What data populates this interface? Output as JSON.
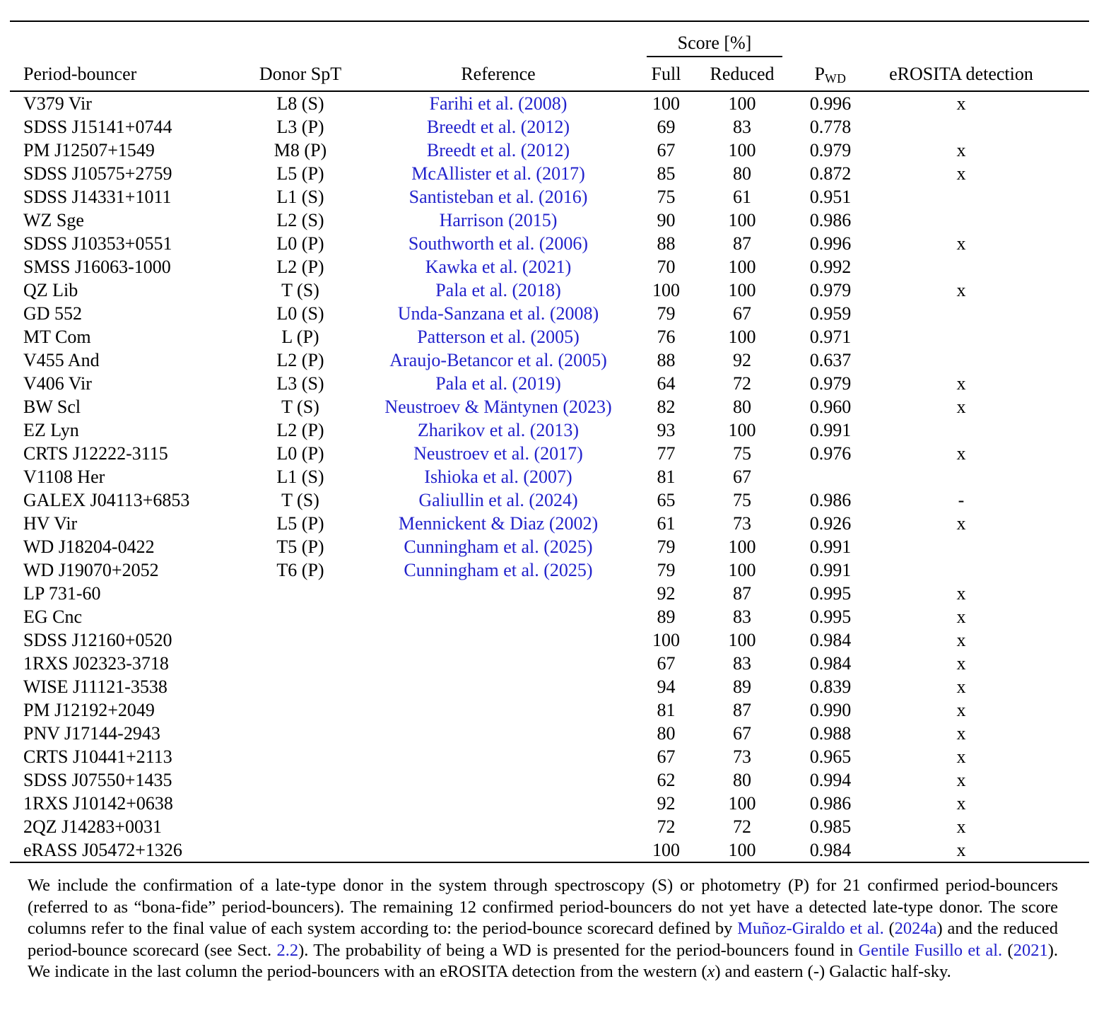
{
  "colors": {
    "link_blue": "#2222cc",
    "text": "#000000",
    "background": "#ffffff"
  },
  "table": {
    "score_group_label": "Score [%]",
    "headers": {
      "period_bouncer": "Period-bouncer",
      "donor_spt": "Donor SpT",
      "reference": "Reference",
      "full": "Full",
      "reduced": "Reduced",
      "pwd_base": "P",
      "pwd_sub": "WD",
      "erosita": "eROSITA detection"
    },
    "rows": [
      {
        "name": "V379 Vir",
        "donor": "L8 (S)",
        "reference": "Farihi et al. (2008)",
        "full": "100",
        "reduced": "100",
        "pwd": "0.996",
        "erosita": "x"
      },
      {
        "name": "SDSS J15141+0744",
        "donor": "L3 (P)",
        "reference": "Breedt et al. (2012)",
        "full": "69",
        "reduced": "83",
        "pwd": "0.778",
        "erosita": ""
      },
      {
        "name": "PM J12507+1549",
        "donor": "M8 (P)",
        "reference": "Breedt et al. (2012)",
        "full": "67",
        "reduced": "100",
        "pwd": "0.979",
        "erosita": "x"
      },
      {
        "name": "SDSS J10575+2759",
        "donor": "L5 (P)",
        "reference": "McAllister et al. (2017)",
        "full": "85",
        "reduced": "80",
        "pwd": "0.872",
        "erosita": "x"
      },
      {
        "name": "SDSS J14331+1011",
        "donor": "L1 (S)",
        "reference": "Santisteban et al. (2016)",
        "full": "75",
        "reduced": "61",
        "pwd": "0.951",
        "erosita": ""
      },
      {
        "name": "WZ Sge",
        "donor": "L2 (S)",
        "reference": "Harrison (2015)",
        "full": "90",
        "reduced": "100",
        "pwd": "0.986",
        "erosita": ""
      },
      {
        "name": "SDSS J10353+0551",
        "donor": "L0 (P)",
        "reference": "Southworth et al. (2006)",
        "full": "88",
        "reduced": "87",
        "pwd": "0.996",
        "erosita": "x"
      },
      {
        "name": "SMSS J16063-1000",
        "donor": "L2 (P)",
        "reference": "Kawka et al. (2021)",
        "full": "70",
        "reduced": "100",
        "pwd": "0.992",
        "erosita": ""
      },
      {
        "name": "QZ Lib",
        "donor": "T (S)",
        "reference": "Pala et al. (2018)",
        "full": "100",
        "reduced": "100",
        "pwd": "0.979",
        "erosita": "x"
      },
      {
        "name": "GD 552",
        "donor": "L0 (S)",
        "reference": "Unda-Sanzana et al. (2008)",
        "full": "79",
        "reduced": "67",
        "pwd": "0.959",
        "erosita": ""
      },
      {
        "name": "MT Com",
        "donor": "L (P)",
        "reference": "Patterson et al. (2005)",
        "full": "76",
        "reduced": "100",
        "pwd": "0.971",
        "erosita": ""
      },
      {
        "name": "V455 And",
        "donor": "L2 (P)",
        "reference": "Araujo-Betancor et al. (2005)",
        "full": "88",
        "reduced": "92",
        "pwd": "0.637",
        "erosita": ""
      },
      {
        "name": "V406 Vir",
        "donor": "L3 (S)",
        "reference": "Pala et al. (2019)",
        "full": "64",
        "reduced": "72",
        "pwd": "0.979",
        "erosita": "x"
      },
      {
        "name": "BW Scl",
        "donor": "T (S)",
        "reference": "Neustroev & Mäntynen (2023)",
        "full": "82",
        "reduced": "80",
        "pwd": "0.960",
        "erosita": "x"
      },
      {
        "name": "EZ Lyn",
        "donor": "L2 (P)",
        "reference": "Zharikov et al. (2013)",
        "full": "93",
        "reduced": "100",
        "pwd": "0.991",
        "erosita": ""
      },
      {
        "name": "CRTS J12222-3115",
        "donor": "L0 (P)",
        "reference": "Neustroev et al. (2017)",
        "full": "77",
        "reduced": "75",
        "pwd": "0.976",
        "erosita": "x"
      },
      {
        "name": "V1108 Her",
        "donor": "L1 (S)",
        "reference": "Ishioka et al. (2007)",
        "full": "81",
        "reduced": "67",
        "pwd": "",
        "erosita": ""
      },
      {
        "name": "GALEX J04113+6853",
        "donor": "T (S)",
        "reference": "Galiullin et al. (2024)",
        "full": "65",
        "reduced": "75",
        "pwd": "0.986",
        "erosita": "-"
      },
      {
        "name": "HV Vir",
        "donor": "L5 (P)",
        "reference": "Mennickent & Diaz (2002)",
        "full": "61",
        "reduced": "73",
        "pwd": "0.926",
        "erosita": "x"
      },
      {
        "name": "WD J18204-0422",
        "donor": "T5 (P)",
        "reference": "Cunningham et al. (2025)",
        "full": "79",
        "reduced": "100",
        "pwd": "0.991",
        "erosita": ""
      },
      {
        "name": "WD J19070+2052",
        "donor": "T6 (P)",
        "reference": "Cunningham et al. (2025)",
        "full": "79",
        "reduced": "100",
        "pwd": "0.991",
        "erosita": ""
      },
      {
        "name": "LP 731-60",
        "donor": "",
        "reference": "",
        "full": "92",
        "reduced": "87",
        "pwd": "0.995",
        "erosita": "x"
      },
      {
        "name": "EG Cnc",
        "donor": "",
        "reference": "",
        "full": "89",
        "reduced": "83",
        "pwd": "0.995",
        "erosita": "x"
      },
      {
        "name": "SDSS J12160+0520",
        "donor": "",
        "reference": "",
        "full": "100",
        "reduced": "100",
        "pwd": "0.984",
        "erosita": "x"
      },
      {
        "name": "1RXS J02323-3718",
        "donor": "",
        "reference": "",
        "full": "67",
        "reduced": "83",
        "pwd": "0.984",
        "erosita": "x"
      },
      {
        "name": "WISE J11121-3538",
        "donor": "",
        "reference": "",
        "full": "94",
        "reduced": "89",
        "pwd": "0.839",
        "erosita": "x"
      },
      {
        "name": "PM J12192+2049",
        "donor": "",
        "reference": "",
        "full": "81",
        "reduced": "87",
        "pwd": "0.990",
        "erosita": "x"
      },
      {
        "name": "PNV J17144-2943",
        "donor": "",
        "reference": "",
        "full": "80",
        "reduced": "67",
        "pwd": "0.988",
        "erosita": "x"
      },
      {
        "name": "CRTS J10441+2113",
        "donor": "",
        "reference": "",
        "full": "67",
        "reduced": "73",
        "pwd": "0.965",
        "erosita": "x"
      },
      {
        "name": "SDSS J07550+1435",
        "donor": "",
        "reference": "",
        "full": "62",
        "reduced": "80",
        "pwd": "0.994",
        "erosita": "x"
      },
      {
        "name": "1RXS J10142+0638",
        "donor": "",
        "reference": "",
        "full": "92",
        "reduced": "100",
        "pwd": "0.986",
        "erosita": "x"
      },
      {
        "name": "2QZ J14283+0031",
        "donor": "",
        "reference": "",
        "full": "72",
        "reduced": "72",
        "pwd": "0.985",
        "erosita": "x"
      },
      {
        "name": "eRASS J05472+1326",
        "donor": "",
        "reference": "",
        "full": "100",
        "reduced": "100",
        "pwd": "0.984",
        "erosita": "x"
      }
    ]
  },
  "footnote": {
    "segments": [
      {
        "text": "We include the confirmation of a late-type donor in the system through spectroscopy (S) or photometry (P) for 21 confirmed period-bouncers (referred to as “bona-fide” period-bouncers). The remaining 12 confirmed period-bouncers do not yet have a detected late-type donor. The score columns refer to the final value of each system according to: the period-bounce scorecard defined by ",
        "style": "plain"
      },
      {
        "text": "Muñoz-Giraldo et al.",
        "style": "link"
      },
      {
        "text": " (",
        "style": "plain"
      },
      {
        "text": "2024a",
        "style": "link"
      },
      {
        "text": ") and the reduced period-bounce scorecard (see Sect. ",
        "style": "plain"
      },
      {
        "text": "2.2",
        "style": "link"
      },
      {
        "text": "). The probability of being a WD is presented for the period-bouncers found in ",
        "style": "plain"
      },
      {
        "text": "Gentile Fusillo et al.",
        "style": "link"
      },
      {
        "text": " (",
        "style": "plain"
      },
      {
        "text": "2021",
        "style": "link"
      },
      {
        "text": "). We indicate in the last column the period-bouncers with an eROSITA detection from the western (",
        "style": "plain"
      },
      {
        "text": "x",
        "style": "italic"
      },
      {
        "text": ") and eastern (-) Galactic half-sky.",
        "style": "plain"
      }
    ]
  }
}
